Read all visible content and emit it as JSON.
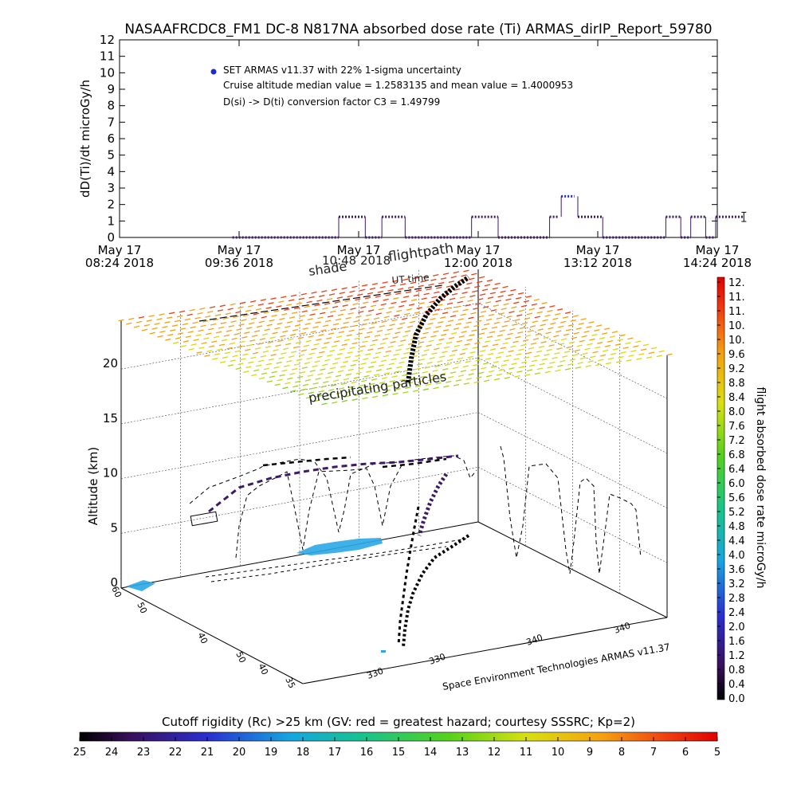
{
  "chart_data": [
    {
      "type": "line",
      "title": "NASAAFRCDC8_FM1 DC-8   N817NA absorbed dose rate (Ti) ARMAS_dirIP_Report_59780",
      "ylabel": "dD(Ti)/dt microGy/h",
      "ylim": [
        0,
        12
      ],
      "yticks": [
        "0",
        "1",
        "2",
        "3",
        "4",
        "5",
        "6",
        "7",
        "8",
        "9",
        "10",
        "11",
        "12"
      ],
      "xticks": [
        {
          "top": "May 17",
          "bottom": "08:24 2018"
        },
        {
          "top": "May 17",
          "bottom": "09:36 2018"
        },
        {
          "top": "May 17",
          "bottom": "10:48 2018"
        },
        {
          "top": "May 17",
          "bottom": "12:00 2018"
        },
        {
          "top": "May 17",
          "bottom": "13:12 2018"
        },
        {
          "top": "May 17",
          "bottom": "14:24 2018"
        }
      ],
      "legend": {
        "marker_color": "#1a2bd6",
        "series_label": "SET ARMAS v11.37 with 22% 1-sigma uncertainty",
        "median_line": "Cruise altitude median value = 1.2583135 and mean value = 1.4000953",
        "conversion_line": "D(si) -> D(ti) conversion factor C3 = 1.49799",
        "placement": "top-left"
      },
      "series": [
        {
          "color": "#3d1a66",
          "segments": [
            {
              "x": [
                "09:32",
                "10:36"
              ],
              "y": 0
            },
            {
              "x": [
                "10:36",
                "10:52"
              ],
              "y": 1.25
            },
            {
              "x": [
                "10:52",
                "11:02"
              ],
              "y": 0
            },
            {
              "x": [
                "11:02",
                "11:16"
              ],
              "y": 1.25
            },
            {
              "x": [
                "11:16",
                "11:56"
              ],
              "y": 0
            },
            {
              "x": [
                "11:56",
                "12:12"
              ],
              "y": 1.25
            },
            {
              "x": [
                "12:12",
                "12:43"
              ],
              "y": 0
            },
            {
              "x": [
                "12:43",
                "12:48"
              ],
              "y": 1.25
            },
            {
              "x": [
                "12:50",
                "12:58"
              ],
              "y": 2.5
            },
            {
              "x": [
                "13:00",
                "13:15"
              ],
              "y": 1.25
            },
            {
              "x": [
                "13:15",
                "13:53"
              ],
              "y": 0
            },
            {
              "x": [
                "13:53",
                "14:02"
              ],
              "y": 1.25
            },
            {
              "x": [
                "14:02",
                "14:08"
              ],
              "y": 0
            },
            {
              "x": [
                "14:08",
                "14:17"
              ],
              "y": 1.25
            },
            {
              "x": [
                "14:17",
                "14:23"
              ],
              "y": 0
            },
            {
              "x": [
                "14:23",
                "14:40"
              ],
              "y": 1.25
            }
          ],
          "error_bar": {
            "x": "14:40",
            "y": 1.25,
            "err": 0.28
          }
        }
      ]
    },
    {
      "type": "scatter",
      "ylabel": "Altitude (km)",
      "zticks": [
        "0",
        "5",
        "10",
        "15",
        "20"
      ],
      "annotations": [
        "shade",
        "10:48 2018",
        "flightpath",
        "UT time",
        "precipitating particles"
      ],
      "lat_ticks": [
        "60",
        "50",
        "40",
        "35",
        "60"
      ],
      "lon_ticks": [
        "330",
        "330",
        "340",
        "340"
      ],
      "credit": "Space Environment Technologies ARMAS v11.37",
      "colorbar": {
        "label": "flight absorbed dose rate microGy/h",
        "ticks": [
          "12.",
          "11.",
          "11.",
          "10.",
          "10.",
          "9.6",
          "9.2",
          "8.8",
          "8.4",
          "8.0",
          "7.6",
          "7.2",
          "6.8",
          "6.4",
          "6.0",
          "5.6",
          "5.2",
          "4.8",
          "4.4",
          "4.0",
          "3.6",
          "3.2",
          "2.8",
          "2.4",
          "2.0",
          "1.6",
          "1.2",
          "0.8",
          "0.4",
          "0.0"
        ]
      }
    },
    {
      "type": "heatmap",
      "title": "Cutoff rigidity (Rc) >25 km (GV: red = greatest hazard; courtesy SSSRC; Kp=2)",
      "ticks": [
        "25",
        "24",
        "23",
        "22",
        "21",
        "20",
        "19",
        "18",
        "17",
        "16",
        "15",
        "14",
        "13",
        "12",
        "11",
        "10",
        "9",
        "8",
        "7",
        "6",
        "5"
      ]
    }
  ]
}
